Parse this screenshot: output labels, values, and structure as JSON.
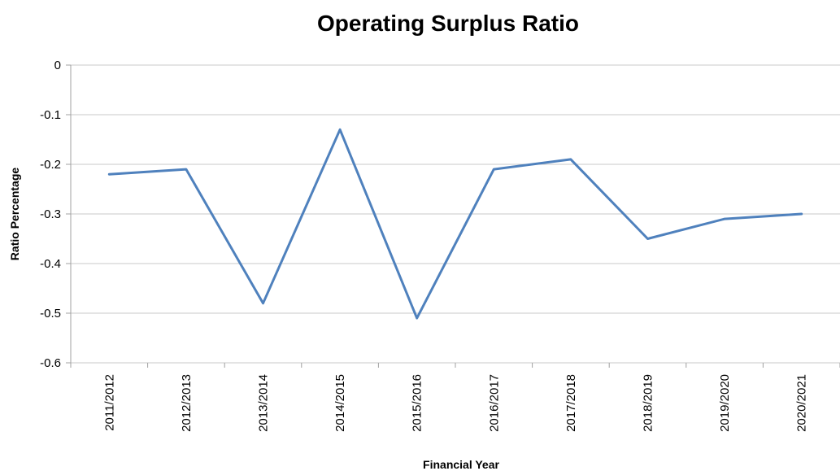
{
  "chart_data": {
    "type": "line",
    "title": "Operating Surplus Ratio",
    "xlabel": "Financial Year",
    "ylabel": "Ratio Percentage",
    "categories": [
      "2011/2012",
      "2012/2013",
      "2013/2014",
      "2014/2015",
      "2015/2016",
      "2016/2017",
      "2017/2018",
      "2018/2019",
      "2019/2020",
      "2020/2021"
    ],
    "series": [
      {
        "values": [
          -0.22,
          -0.21,
          -0.48,
          -0.13,
          -0.51,
          -0.21,
          -0.19,
          -0.35,
          -0.31,
          -0.3
        ],
        "color": "#4f81bd"
      }
    ],
    "ylim": [
      -0.6,
      0
    ],
    "yticks": [
      "0",
      "-0.1",
      "-0.2",
      "-0.3",
      "-0.4",
      "-0.5",
      "-0.6"
    ],
    "grid": true,
    "legend": "none"
  }
}
